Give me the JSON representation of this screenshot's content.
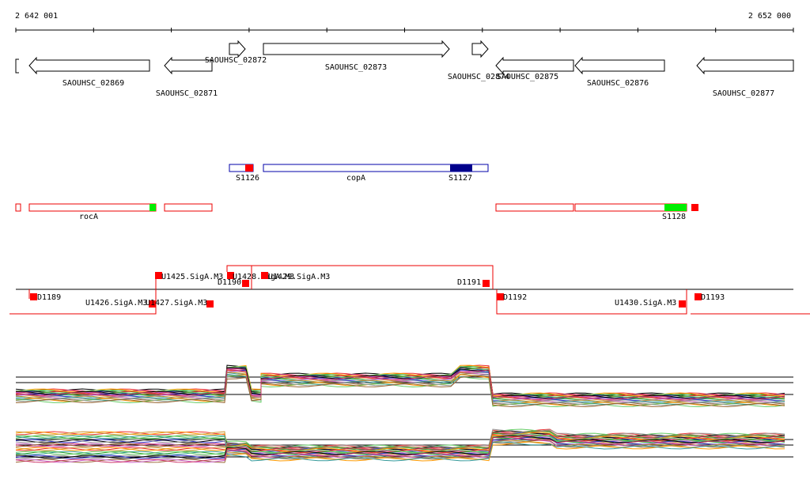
{
  "ruler": {
    "start": "2 642 001",
    "end": "2 652 000"
  },
  "genes": [
    {
      "label": "SAOUHSC_02869"
    },
    {
      "label": "SAOUHSC_02871"
    },
    {
      "label": "SAOUHSC_02872"
    },
    {
      "label": "SAOUHSC_02873"
    },
    {
      "label": "SAOUHSC_02874"
    },
    {
      "label": "SAOUHSC_02875"
    },
    {
      "label": "SAOUHSC_02876"
    },
    {
      "label": "SAOUHSC_02877"
    }
  ],
  "transcripts": [
    {
      "label": "S1126"
    },
    {
      "label": "copA"
    },
    {
      "label": "S1127"
    },
    {
      "label": "rocA"
    },
    {
      "label": "S1128"
    }
  ],
  "promoters": [
    {
      "label": "D1189"
    },
    {
      "label": "U1426.SigA.M3"
    },
    {
      "label": "U1427.SigA.M3"
    },
    {
      "label": "U1425.SigA.M3"
    },
    {
      "label": "D1190"
    },
    {
      "label": "U1428.SigA.M3"
    },
    {
      "label": "U1429.SigA.M3"
    },
    {
      "label": "D1191"
    },
    {
      "label": "D1192"
    },
    {
      "label": "U1430.SigA.M3"
    },
    {
      "label": "D1193"
    }
  ]
}
